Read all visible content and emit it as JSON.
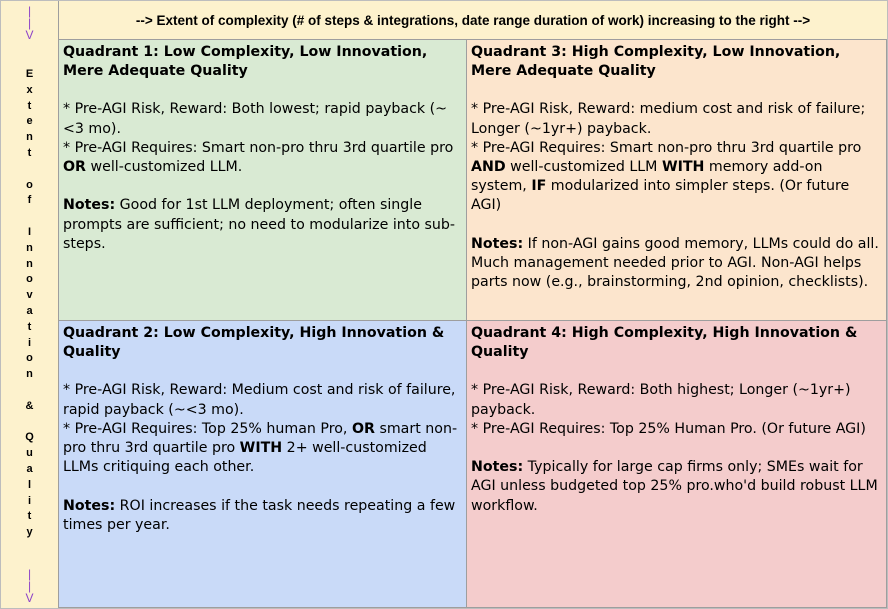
{
  "header": {
    "text": "--> Extent of complexity (# of steps & integrations, date range duration of work) increasing to the right -->"
  },
  "side": {
    "arrow_top": [
      "|",
      "|",
      "V"
    ],
    "letters": [
      "E",
      "x",
      "t",
      "e",
      "n",
      "t",
      "",
      "o",
      "f",
      "",
      "I",
      "n",
      "n",
      "o",
      "v",
      "a",
      "t",
      "i",
      "o",
      "n",
      "",
      "&",
      "",
      "Q",
      "u",
      "a",
      "l",
      "i",
      "t",
      "y"
    ],
    "arrow_bottom": [
      "|",
      "|",
      "V"
    ]
  },
  "quadrants": {
    "q1": {
      "title": "Quadrant 1: Low Complexity, Low Innovation, Mere Adequate Quality",
      "risk": "* Pre-AGI Risk, Reward: Both lowest; rapid payback (~<3 mo).",
      "req_a": "* Pre-AGI Requires: Smart non-pro thru 3rd quartile pro ",
      "req_b": "OR",
      "req_c": " well-customized LLM.",
      "notes_label": "Notes:",
      "notes": " Good for 1st LLM deployment; often single prompts are sufficient; no need to modularize into sub-steps."
    },
    "q3": {
      "title": "Quadrant 3: High Complexity, Low Innovation, Mere Adequate Quality",
      "risk": "* Pre-AGI Risk, Reward: medium cost and risk of failure; Longer (~1yr+) payback.",
      "req_a": "* Pre-AGI Requires: Smart non-pro thru 3rd quartile pro ",
      "req_b": "AND",
      "req_c": " well-customized LLM ",
      "req_d": "WITH",
      "req_e": " memory add-on system, ",
      "req_f": "IF",
      "req_g": " modularized into simpler steps. (Or future AGI)",
      "notes_label": "Notes:",
      "notes": " If non-AGI gains good memory, LLMs could do all. Much management needed prior to AGI. Non-AGI helps parts now (e.g., brainstorming, 2nd opinion, checklists)."
    },
    "q2": {
      "title": "Quadrant 2: Low Complexity, High Innovation & Quality",
      "risk": "* Pre-AGI Risk, Reward: Medium cost and risk of failure, rapid payback (~<3 mo).",
      "req_a": "* Pre-AGI Requires: Top 25% human Pro, ",
      "req_b": "OR",
      "req_c": " smart non-pro thru 3rd quartile pro ",
      "req_d": "WITH",
      "req_e": " 2+ well-customized LLMs critiquing each other.",
      "notes_label": "Notes:",
      "notes": " ROI increases if the task needs repeating a few times per year."
    },
    "q4": {
      "title": "Quadrant 4: High Complexity, High Innovation & Quality",
      "risk": "* Pre-AGI Risk, Reward: Both highest; Longer (~1yr+) payback.",
      "req_a": "* Pre-AGI Requires: Top 25% Human Pro. (Or future AGI)",
      "notes_label": "Notes:",
      "notes": " Typically for large cap firms only; SMEs wait for AGI unless budgeted top 25% pro.who'd build robust LLM workflow."
    }
  }
}
